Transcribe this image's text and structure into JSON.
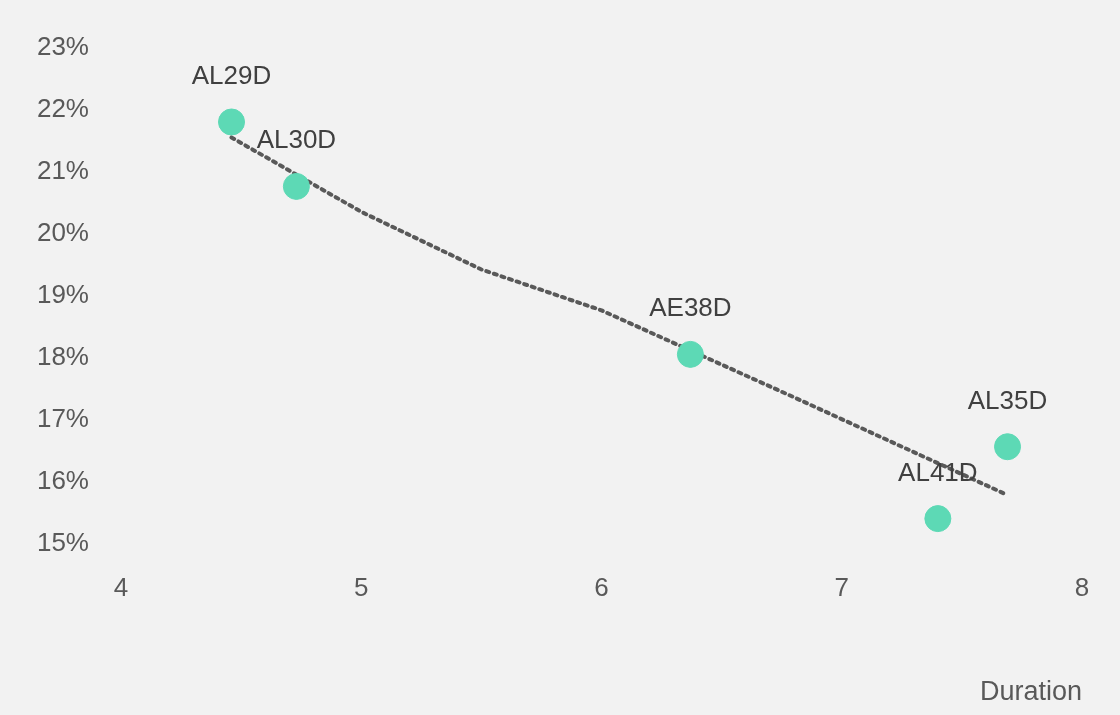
{
  "chart_data": {
    "type": "scatter",
    "xlabel": "Duration",
    "xlim": [
      4,
      8
    ],
    "xticks": [
      4,
      5,
      6,
      7,
      8
    ],
    "ylim": [
      15,
      23
    ],
    "yticks": [
      {
        "value": 15,
        "label": "15%"
      },
      {
        "value": 16,
        "label": "16%"
      },
      {
        "value": 17,
        "label": "17%"
      },
      {
        "value": 18,
        "label": "18%"
      },
      {
        "value": 19,
        "label": "19%"
      },
      {
        "value": 20,
        "label": "20%"
      },
      {
        "value": 21,
        "label": "21%"
      },
      {
        "value": 22,
        "label": "22%"
      },
      {
        "value": 23,
        "label": "23%"
      }
    ],
    "grid": false,
    "legend": false,
    "series": [
      {
        "type": "scatter",
        "color": "#5dd9b5",
        "marker": "circle",
        "x": [
          4.46,
          4.73,
          6.37,
          7.4,
          7.69
        ],
        "values": [
          21.8,
          20.76,
          18.05,
          15.4,
          16.56
        ]
      },
      {
        "type": "line",
        "color": "#595959",
        "marker": "none",
        "line_style": "dotted",
        "x": [
          4.46,
          5.0,
          5.5,
          6.0,
          6.8,
          7.69
        ],
        "values": [
          21.55,
          20.35,
          19.42,
          18.76,
          17.36,
          15.78
        ]
      }
    ],
    "annotations": [
      {
        "text": "AL29D",
        "x": 4.46,
        "y": 21.8
      },
      {
        "text": "AL30D",
        "x": 4.73,
        "y": 20.76
      },
      {
        "text": "AE38D",
        "x": 6.37,
        "y": 18.05
      },
      {
        "text": "AL41D",
        "x": 7.4,
        "y": 15.4
      },
      {
        "text": "AL35D",
        "x": 7.69,
        "y": 16.56
      }
    ]
  }
}
